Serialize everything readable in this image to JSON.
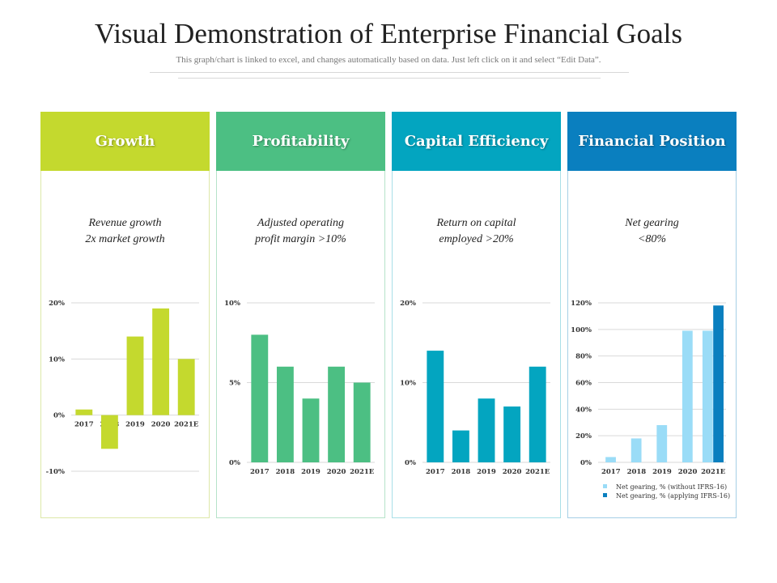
{
  "page": {
    "title": "Visual Demonstration of Enterprise Financial Goals",
    "subtitle": "This graph/chart  is linked to excel, and changes automatically  based on data. Just left click on it and select “Edit Data”."
  },
  "colors": {
    "growth": "#c4d92e",
    "profitability": "#4cbf83",
    "capital": "#03a5c0",
    "position": "#0a7fbf",
    "position_light": "#9adcf7"
  },
  "panels": [
    {
      "header": "Growth",
      "desc_line1": "Revenue growth",
      "desc_line2": "2x market growth"
    },
    {
      "header": "Profitability",
      "desc_line1": "Adjusted operating",
      "desc_line2": "profit margin >10%"
    },
    {
      "header": "Capital Efficiency",
      "desc_line1": "Return on capital",
      "desc_line2": "employed >20%"
    },
    {
      "header": "Financial Position",
      "desc_line1": "Net gearing",
      "desc_line2": "<80%"
    }
  ],
  "chart_data": [
    {
      "type": "bar",
      "title": "Growth",
      "categories": [
        "2017",
        "2018",
        "2019",
        "2020",
        "2021E"
      ],
      "values": [
        1,
        -6,
        14,
        19,
        10
      ],
      "ylim": [
        -10,
        20
      ],
      "yticks": [
        20,
        10,
        0,
        -10
      ],
      "ytick_labels": [
        "20%",
        "10%",
        "0%",
        "-10%"
      ],
      "xlabel": "",
      "ylabel": ""
    },
    {
      "type": "bar",
      "title": "Profitability",
      "categories": [
        "2017",
        "2018",
        "2019",
        "2020",
        "2021E"
      ],
      "values": [
        8,
        6,
        4,
        6,
        5
      ],
      "ylim": [
        0,
        10
      ],
      "yticks": [
        10,
        5,
        0
      ],
      "ytick_labels": [
        "10%",
        "5%",
        "0%"
      ],
      "xlabel": "",
      "ylabel": ""
    },
    {
      "type": "bar",
      "title": "Capital Efficiency",
      "categories": [
        "2017",
        "2018",
        "2019",
        "2020",
        "2021E"
      ],
      "values": [
        14,
        4,
        8,
        7,
        12
      ],
      "ylim": [
        0,
        20
      ],
      "yticks": [
        20,
        10,
        0
      ],
      "ytick_labels": [
        "20%",
        "10%",
        "0%"
      ],
      "xlabel": "",
      "ylabel": ""
    },
    {
      "type": "bar",
      "title": "Financial Position",
      "categories": [
        "2017",
        "2018",
        "2019",
        "2020",
        "2021E"
      ],
      "series": [
        {
          "name": "Net gearing, % (without IFRS-16)",
          "values": [
            4,
            18,
            28,
            99,
            99
          ]
        },
        {
          "name": "Net gearing, % (applying IFRS-16)",
          "values": [
            null,
            null,
            null,
            null,
            118
          ]
        }
      ],
      "ylim": [
        0,
        120
      ],
      "yticks": [
        120,
        100,
        80,
        60,
        40,
        20,
        0
      ],
      "ytick_labels": [
        "120%",
        "100%",
        "80%",
        "60%",
        "40%",
        "20%",
        "0%"
      ],
      "legend_position": "bottom",
      "xlabel": "",
      "ylabel": ""
    }
  ]
}
